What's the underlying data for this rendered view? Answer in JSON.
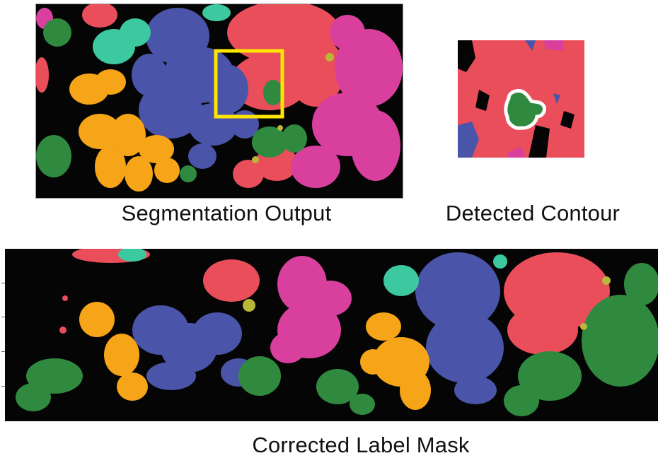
{
  "captions": {
    "segmentation": "Segmentation Output",
    "contour": "Detected Contour",
    "corrected": "Corrected Label Mask"
  },
  "colors": {
    "background": "#050505",
    "red": "#e94e5a",
    "blue": "#4a54a8",
    "magenta": "#d9409e",
    "orange": "#f6a418",
    "green": "#2f8a3f",
    "teal": "#3cc9a0",
    "olive": "#b9b63a",
    "highlight": "#ffe600",
    "contour": "#ffffff"
  }
}
